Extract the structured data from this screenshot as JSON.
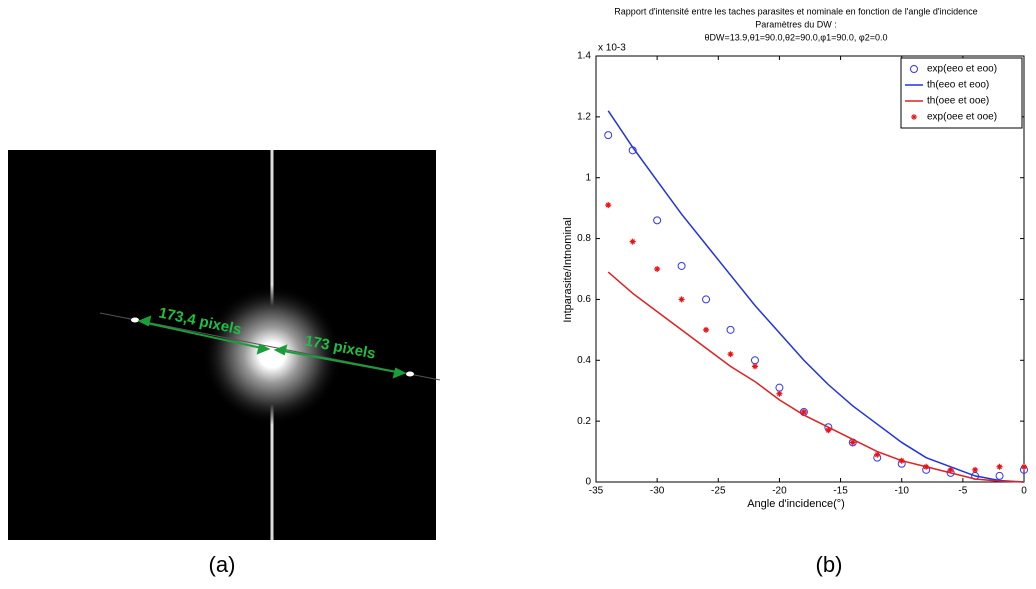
{
  "image_a": {
    "labels": [
      "173,4 pixels",
      "173 pixels"
    ],
    "caption": "(a)"
  },
  "chart_data": {
    "type": "line",
    "title": "Rapport d'intensité entre les taches parasites et nominale en fonction de l'angle d'incidence",
    "subtitle": "Paramètres du DW :",
    "parameters": "θDW=13.9,θ1=90.0,θ2=90.0,φ1=90.0, φ2=0.0",
    "y_multiplier": "x 10-3",
    "xlabel": "Angle d'incidence(°)",
    "ylabel": "Intparasite/Intnominal",
    "caption": "(b)",
    "x": [
      -34,
      -32,
      -30,
      -28,
      -26,
      -24,
      -22,
      -20,
      -18,
      -16,
      -14,
      -12,
      -10,
      -8,
      -6,
      -4,
      -2,
      0
    ],
    "series": [
      {
        "name": "exp(eeo et eoo)",
        "color": "#3333ff",
        "marker": "circle",
        "values": [
          1.14,
          1.09,
          0.86,
          0.71,
          0.6,
          0.5,
          0.4,
          0.31,
          0.23,
          0.18,
          0.13,
          0.08,
          0.06,
          0.04,
          0.03,
          0.02,
          0.02,
          0.04
        ]
      },
      {
        "name": "th(eeo et eoo)",
        "color": "#2233dd",
        "marker": "line",
        "values": [
          1.22,
          1.1,
          0.99,
          0.88,
          0.78,
          0.68,
          0.58,
          0.49,
          0.4,
          0.32,
          0.25,
          0.19,
          0.13,
          0.08,
          0.05,
          0.02,
          0.005,
          0
        ]
      },
      {
        "name": "th(oee et ooe)",
        "color": "#dd2222",
        "marker": "line",
        "values": [
          0.69,
          0.62,
          0.56,
          0.5,
          0.44,
          0.38,
          0.33,
          0.27,
          0.22,
          0.18,
          0.14,
          0.1,
          0.07,
          0.05,
          0.03,
          0.01,
          0.003,
          0
        ]
      },
      {
        "name": "exp(oee et ooe)",
        "color": "#ee1111",
        "marker": "star",
        "values": [
          0.91,
          0.79,
          0.7,
          0.6,
          0.5,
          0.42,
          0.38,
          0.29,
          0.23,
          0.17,
          0.13,
          0.09,
          0.07,
          0.05,
          0.04,
          0.04,
          0.05,
          0.05
        ]
      }
    ],
    "xlim": [
      -35,
      0
    ],
    "ylim": [
      0,
      1.4
    ],
    "xticks": [
      -35,
      -30,
      -25,
      -20,
      -15,
      -10,
      -5,
      0
    ],
    "yticks": [
      0,
      0.2,
      0.4,
      0.6,
      0.8,
      1,
      1.2,
      1.4
    ],
    "legend": "top-right",
    "grid": false
  }
}
